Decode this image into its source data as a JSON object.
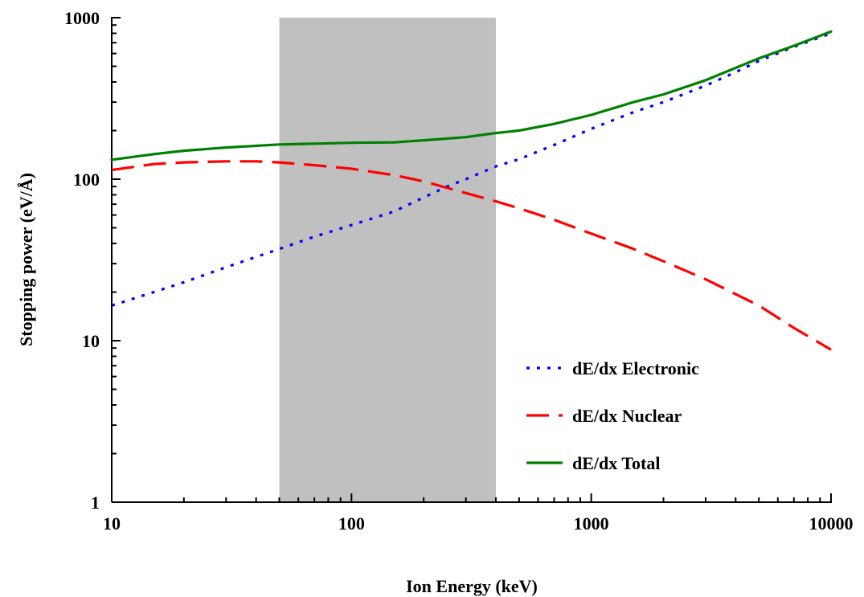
{
  "chart_data": {
    "type": "line",
    "title": "",
    "xlabel": "Ion Energy (keV)",
    "ylabel": "Stopping power (eV/Å)",
    "xscale": "log",
    "yscale": "log",
    "xlim": [
      10,
      10000
    ],
    "ylim": [
      1,
      1000
    ],
    "x_ticks": [
      "10",
      "100",
      "1000",
      "10000"
    ],
    "y_ticks": [
      "1",
      "10",
      "100",
      "1000"
    ],
    "grid": false,
    "legend_position": "bottom-right",
    "shaded_region": {
      "x_start": 50,
      "x_end": 400,
      "color": "#c0c0c0"
    },
    "series": [
      {
        "name": "dE/dx Electronic",
        "color": "#0000ff",
        "style": "dotted",
        "x": [
          10,
          15,
          20,
          30,
          40,
          50,
          70,
          100,
          150,
          200,
          250,
          300,
          400,
          500,
          700,
          1000,
          1500,
          2000,
          3000,
          4000,
          5000,
          7000,
          10000
        ],
        "y": [
          16.5,
          20,
          23,
          28.5,
          33,
          37,
          44,
          52,
          63,
          77,
          90,
          100,
          120,
          133,
          163,
          205,
          260,
          300,
          380,
          460,
          540,
          660,
          800
        ]
      },
      {
        "name": "dE/dx Nuclear",
        "color": "#ff0000",
        "style": "dashed",
        "x": [
          10,
          15,
          20,
          30,
          40,
          50,
          70,
          100,
          150,
          200,
          300,
          400,
          500,
          700,
          1000,
          1500,
          2000,
          3000,
          5000,
          7000,
          10000
        ],
        "y": [
          114,
          124,
          127,
          129,
          129,
          127,
          122,
          116,
          106,
          97,
          82,
          73,
          66,
          56,
          46,
          37,
          31,
          24,
          16.5,
          12,
          8.8
        ]
      },
      {
        "name": "dE/dx Total",
        "color": "#008000",
        "style": "solid",
        "x": [
          10,
          15,
          20,
          30,
          50,
          70,
          100,
          150,
          200,
          300,
          400,
          500,
          700,
          1000,
          1500,
          2000,
          3000,
          5000,
          7000,
          10000
        ],
        "y": [
          132,
          143,
          150,
          157,
          164,
          166,
          168,
          169,
          174,
          182,
          193,
          200,
          220,
          250,
          300,
          335,
          410,
          560,
          670,
          820
        ]
      }
    ]
  }
}
